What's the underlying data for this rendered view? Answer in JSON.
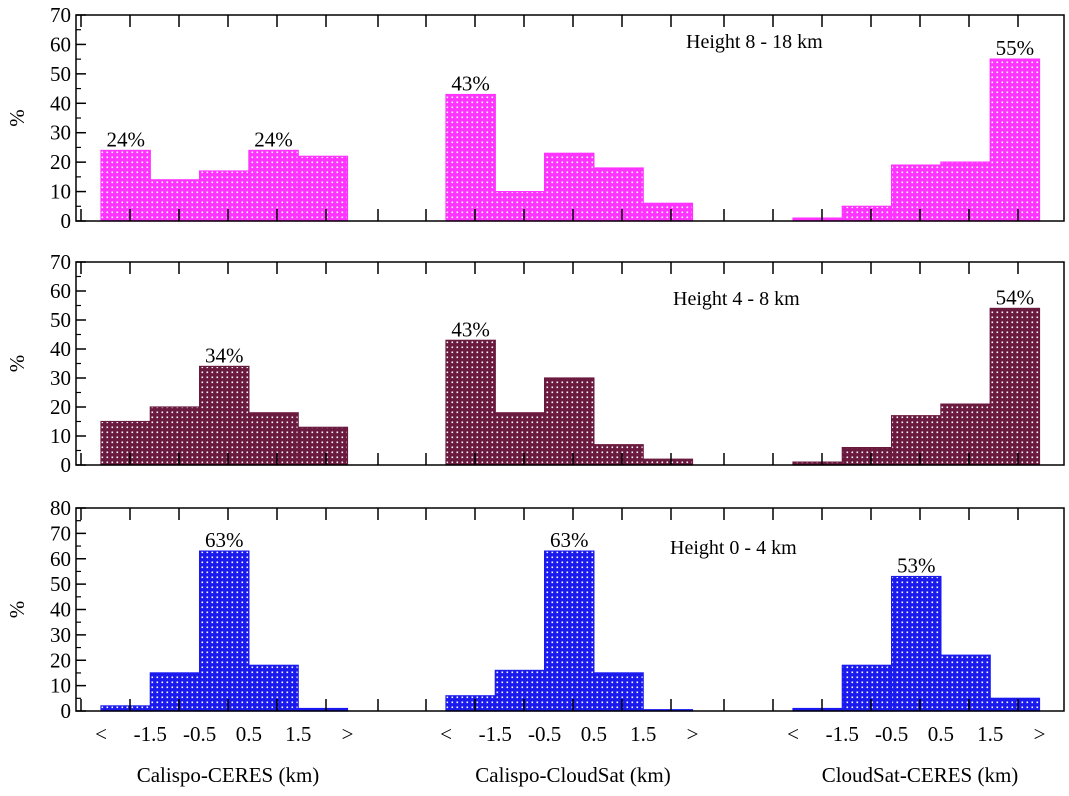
{
  "chart_data": [
    {
      "type": "bar",
      "title": "Height 8 - 18 km",
      "ylabel": "%",
      "ylim": [
        0,
        70
      ],
      "yticks": [
        0,
        10,
        20,
        30,
        40,
        50,
        60,
        70
      ],
      "color": "#ff33ff",
      "groups": [
        {
          "name": "Calispo-CERES (km)",
          "values": [
            24,
            14,
            17,
            24,
            22
          ],
          "annotations": [
            {
              "bin": 0,
              "text": "24%"
            },
            {
              "bin": 3,
              "text": "24%"
            }
          ]
        },
        {
          "name": "Calispo-CloudSat (km)",
          "values": [
            43,
            10,
            23,
            18,
            6
          ],
          "annotations": [
            {
              "bin": 0,
              "text": "43%"
            }
          ]
        },
        {
          "name": "CloudSat-CERES (km)",
          "values": [
            1,
            5,
            19,
            20,
            55
          ],
          "annotations": [
            {
              "bin": 4,
              "text": "55%"
            }
          ]
        }
      ]
    },
    {
      "type": "bar",
      "title": "Height 4 - 8 km",
      "ylabel": "%",
      "ylim": [
        0,
        70
      ],
      "yticks": [
        0,
        10,
        20,
        30,
        40,
        50,
        60,
        70
      ],
      "color": "#6b1a3f",
      "groups": [
        {
          "name": "Calispo-CERES (km)",
          "values": [
            15,
            20,
            34,
            18,
            13
          ],
          "annotations": [
            {
              "bin": 2,
              "text": "34%"
            }
          ]
        },
        {
          "name": "Calispo-CloudSat (km)",
          "values": [
            43,
            18,
            30,
            7,
            2
          ],
          "annotations": [
            {
              "bin": 0,
              "text": "43%"
            }
          ]
        },
        {
          "name": "CloudSat-CERES (km)",
          "values": [
            1,
            6,
            17,
            21,
            54
          ],
          "annotations": [
            {
              "bin": 4,
              "text": "54%"
            }
          ]
        }
      ]
    },
    {
      "type": "bar",
      "title": "Height 0 - 4 km",
      "ylabel": "%",
      "ylim": [
        0,
        80
      ],
      "yticks": [
        0,
        10,
        20,
        30,
        40,
        50,
        60,
        70,
        80
      ],
      "color": "#1a1aee",
      "groups": [
        {
          "name": "Calispo-CERES (km)",
          "values": [
            2,
            15,
            63,
            18,
            1
          ],
          "annotations": [
            {
              "bin": 2,
              "text": "63%"
            }
          ]
        },
        {
          "name": "Calispo-CloudSat (km)",
          "values": [
            6,
            16,
            63,
            15,
            0.5
          ],
          "annotations": [
            {
              "bin": 2,
              "text": "63%"
            }
          ]
        },
        {
          "name": "CloudSat-CERES (km)",
          "values": [
            1,
            18,
            53,
            22,
            5
          ],
          "annotations": [
            {
              "bin": 2,
              "text": "53%"
            }
          ]
        }
      ]
    }
  ],
  "x_tick_labels": [
    "<",
    "-1.5",
    "-0.5",
    "0.5",
    "1.5",
    ">"
  ],
  "group_labels": [
    "Calispo-CERES (km)",
    "Calispo-CloudSat (km)",
    "CloudSat-CERES (km)"
  ],
  "colors": {
    "panel_top": "#ff33ff",
    "panel_middle": "#6b1a3f",
    "panel_bottom": "#1a1aee",
    "title_top": "#ff33ff",
    "title_middle": "#6b1a3f",
    "title_bottom": "#1a1aee"
  }
}
